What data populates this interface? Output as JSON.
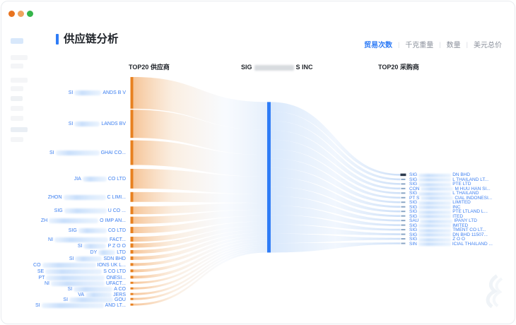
{
  "window": {
    "controls": [
      {
        "name": "dot-orange-dark",
        "color": "#e8731f"
      },
      {
        "name": "dot-orange-light",
        "color": "#f0a35e"
      },
      {
        "name": "dot-green",
        "color": "#35b54a"
      }
    ]
  },
  "header": {
    "title": "供应链分析"
  },
  "tabs": [
    {
      "label": "贸易次数",
      "active": true
    },
    {
      "label": "千克重量",
      "active": false
    },
    {
      "label": "数量",
      "active": false
    },
    {
      "label": "美元总价",
      "active": false
    }
  ],
  "chart": {
    "left_header": "TOP20 供应商",
    "center_header": {
      "prefix": "SIG",
      "suffix": "S INC",
      "redacted": true
    },
    "right_header": "TOP20 采购商"
  },
  "colors": {
    "accent_blue": "#2f7cf6",
    "supplier_node_orange": "#e8801f",
    "center_node_blue": "#2f7cf6",
    "label_blue": "#3b7ef0",
    "tab_inactive_gray": "#8b919c",
    "first_purchaser_node": "#2e3a4e",
    "purchaser_node": "#8aa6c6"
  },
  "chart_data": {
    "type": "sankey",
    "metric": "贸易次数",
    "value_units": "relative flow share, estimated from ribbon thickness (names partially blurred in source)",
    "center_node": {
      "prefix": "SIG",
      "suffix": "S INC",
      "redacted": true
    },
    "suppliers": [
      {
        "prefix": "SI",
        "suffix": "ANDS B V",
        "value": 45,
        "redacted": true
      },
      {
        "prefix": "SI",
        "suffix": "LANDS BV",
        "value": 40,
        "redacted": true
      },
      {
        "prefix": "SI",
        "suffix": "GHAI CO...",
        "value": 35,
        "redacted": true
      },
      {
        "prefix": "JIA",
        "suffix": "CO LTD",
        "value": 28,
        "redacted": true
      },
      {
        "prefix": "ZHON",
        "suffix": "C LIMI...",
        "value": 14,
        "redacted": true
      },
      {
        "prefix": "SIG",
        "suffix": "U CO ...",
        "value": 11,
        "redacted": true
      },
      {
        "prefix": "ZH",
        "suffix": "O IMP AN...",
        "value": 10,
        "redacted": true
      },
      {
        "prefix": "SIG",
        "suffix": "CO LTD",
        "value": 9,
        "redacted": true
      },
      {
        "prefix": "NI",
        "suffix": "FACT...",
        "value": 7,
        "redacted": true
      },
      {
        "prefix": "SI",
        "suffix": "P Z O O",
        "value": 6,
        "redacted": true
      },
      {
        "prefix": "DY",
        "suffix": "LTD",
        "value": 5,
        "redacted": true
      },
      {
        "prefix": "SI",
        "suffix": "SDN BHD",
        "value": 5,
        "redacted": true
      },
      {
        "prefix": "CO",
        "suffix": "IONS UK L...",
        "value": 4,
        "redacted": true
      },
      {
        "prefix": "SE",
        "suffix": "S CO LTD",
        "value": 4,
        "redacted": true
      },
      {
        "prefix": "PT",
        "suffix": "ONESI...",
        "value": 4,
        "redacted": true
      },
      {
        "prefix": "NI",
        "suffix": "UFACT...",
        "value": 3,
        "redacted": true
      },
      {
        "prefix": "SI",
        "suffix": "A CO",
        "value": 3,
        "redacted": true
      },
      {
        "prefix": "VA",
        "suffix": "JERS",
        "value": 3,
        "redacted": true
      },
      {
        "prefix": "SI",
        "suffix": "GOU",
        "value": 3,
        "redacted": true
      },
      {
        "prefix": "SI",
        "suffix": "AND LT...",
        "value": 3,
        "redacted": true
      }
    ],
    "purchasers": [
      {
        "prefix": "SIG",
        "suffix": "DN BHD",
        "redacted": true
      },
      {
        "prefix": "SIG",
        "suffix": "L THAILAND LT...",
        "redacted": true
      },
      {
        "prefix": "SIG",
        "suffix": "PTE LTD",
        "redacted": true
      },
      {
        "prefix": "CON",
        "suffix": "M HUU HAN SI...",
        "redacted": true
      },
      {
        "prefix": "SIG",
        "suffix": "L THAILAND",
        "redacted": true
      },
      {
        "prefix": "PT S",
        "suffix": "CIAL INDONESI...",
        "redacted": true
      },
      {
        "prefix": "SIG",
        "suffix": "LIMITED",
        "redacted": true
      },
      {
        "prefix": "SIG",
        "suffix": "INC",
        "redacted": true
      },
      {
        "prefix": "SIG",
        "suffix": "PTE LTLAND L...",
        "redacted": true
      },
      {
        "prefix": "SIG",
        "suffix": "ITED",
        "redacted": true
      },
      {
        "prefix": "SAU",
        "suffix": "IPANY LTD",
        "redacted": true
      },
      {
        "prefix": "SIG",
        "suffix": "IMITED",
        "redacted": true
      },
      {
        "prefix": "SIG",
        "suffix": "TMENT CO LT...",
        "redacted": true
      },
      {
        "prefix": "SIG",
        "suffix": "DN BHD 11507...",
        "redacted": true
      },
      {
        "prefix": "SIG",
        "suffix": "Z O O",
        "redacted": true
      },
      {
        "prefix": "SIN",
        "suffix": "ICIAL THAILAND ...",
        "redacted": true
      }
    ]
  }
}
